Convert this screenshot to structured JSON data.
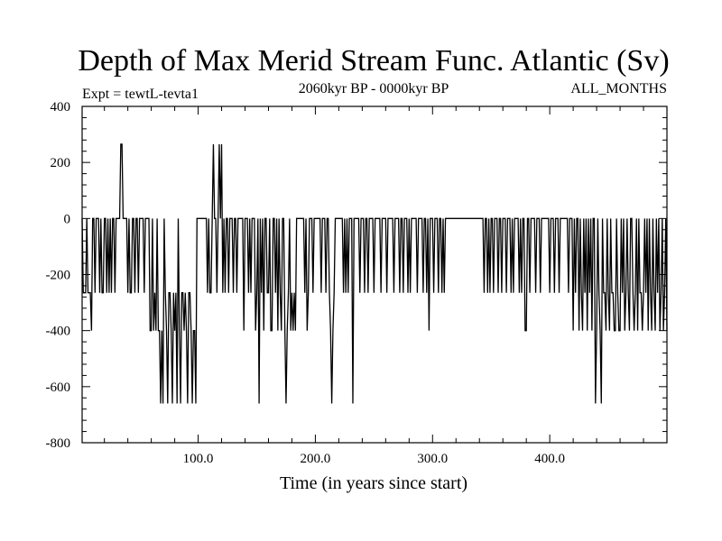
{
  "chart_data": {
    "type": "line",
    "title": "Depth of Max Merid Stream Func. Atlantic (Sv)",
    "subtitle_left": "Expt = tewtL-tevta1",
    "subtitle_center": "2060kyr BP - 0000kyr BP",
    "subtitle_right": "ALL_MONTHS",
    "xlabel": "Time (in years since start)",
    "ylabel": "",
    "xlim": [
      1,
      500
    ],
    "ylim": [
      -800,
      400
    ],
    "x_ticks": [
      100,
      200,
      300,
      400
    ],
    "x_tick_labels": [
      "100.0",
      "200.0",
      "300.0",
      "400.0"
    ],
    "y_ticks": [
      400,
      200,
      0,
      -200,
      -400,
      -600,
      -800
    ],
    "y_tick_labels": [
      "400",
      "200",
      "0",
      "-200",
      "-400",
      "-600",
      "-800"
    ],
    "grid": false,
    "series": [
      {
        "name": "Depth of Max Merid Stream Func.",
        "x_start": 1,
        "x_step": 1,
        "values": [
          0,
          -265,
          -265,
          -265,
          0,
          -265,
          -265,
          -265,
          -400,
          0,
          0,
          -265,
          0,
          0,
          0,
          -265,
          0,
          -265,
          -265,
          0,
          0,
          -265,
          0,
          -265,
          0,
          -265,
          0,
          0,
          -265,
          0,
          0,
          0,
          0,
          265,
          265,
          0,
          0,
          0,
          0,
          -265,
          0,
          -265,
          -265,
          0,
          0,
          -265,
          0,
          0,
          -265,
          0,
          0,
          0,
          0,
          -265,
          0,
          0,
          0,
          0,
          -400,
          -400,
          0,
          -400,
          -265,
          -400,
          0,
          -400,
          -400,
          -660,
          -400,
          -660,
          0,
          -265,
          -400,
          -660,
          -265,
          -265,
          -400,
          -660,
          -265,
          -400,
          -265,
          -660,
          0,
          -400,
          -660,
          -265,
          -265,
          -400,
          -265,
          -400,
          -660,
          -265,
          -265,
          -400,
          -660,
          -400,
          -400,
          -660,
          0,
          0,
          0,
          0,
          0,
          0,
          0,
          0,
          0,
          -265,
          0,
          -265,
          -265,
          0,
          265,
          0,
          0,
          -265,
          0,
          265,
          0,
          265,
          -265,
          0,
          -265,
          0,
          0,
          -265,
          0,
          0,
          0,
          -265,
          0,
          0,
          -265,
          0,
          0,
          0,
          0,
          0,
          -400,
          0,
          0,
          0,
          -265,
          0,
          -265,
          0,
          0,
          0,
          -400,
          -265,
          0,
          -660,
          0,
          -265,
          0,
          -400,
          0,
          0,
          -265,
          -265,
          0,
          -400,
          -400,
          0,
          0,
          -265,
          0,
          -400,
          0,
          -265,
          -400,
          0,
          0,
          -400,
          -660,
          -400,
          -265,
          0,
          -400,
          -265,
          -400,
          -265,
          -400,
          0,
          0,
          0,
          0,
          0,
          0,
          0,
          -265,
          0,
          -400,
          -265,
          0,
          0,
          0,
          -265,
          0,
          0,
          0,
          0,
          0,
          0,
          -265,
          0,
          0,
          0,
          -265,
          0,
          0,
          -265,
          -400,
          -660,
          -400,
          -265,
          0,
          0,
          0,
          0,
          0,
          0,
          0,
          -265,
          0,
          -265,
          0,
          -265,
          0,
          0,
          0,
          -660,
          0,
          0,
          0,
          0,
          0,
          -265,
          0,
          0,
          0,
          -265,
          0,
          0,
          -265,
          0,
          0,
          0,
          0,
          -265,
          0,
          0,
          0,
          0,
          0,
          -265,
          0,
          0,
          0,
          0,
          -265,
          0,
          0,
          0,
          0,
          0,
          -265,
          0,
          0,
          0,
          0,
          -265,
          0,
          0,
          -265,
          0,
          0,
          0,
          -265,
          0,
          -265,
          0,
          0,
          0,
          0,
          0,
          -265,
          0,
          0,
          0,
          0,
          -265,
          0,
          0,
          -265,
          0,
          -400,
          0,
          0,
          0,
          -265,
          0,
          0,
          0,
          -265,
          0,
          0,
          -265,
          0,
          -265,
          0,
          0,
          0,
          0,
          0,
          0,
          0,
          0,
          0,
          0,
          0,
          0,
          0,
          0,
          0,
          0,
          0,
          0,
          0,
          0,
          0,
          0,
          0,
          0,
          0,
          0,
          0,
          0,
          0,
          0,
          0,
          0,
          0,
          -265,
          0,
          0,
          -265,
          0,
          -265,
          0,
          0,
          -265,
          0,
          0,
          0,
          -265,
          0,
          0,
          -265,
          0,
          0,
          0,
          -265,
          0,
          0,
          0,
          -265,
          0,
          -265,
          0,
          0,
          0,
          0,
          -265,
          0,
          -265,
          0,
          0,
          -400,
          -400,
          0,
          0,
          -265,
          0,
          0,
          0,
          0,
          -265,
          0,
          0,
          0,
          -265,
          0,
          0,
          0,
          0,
          0,
          0,
          0,
          -265,
          0,
          0,
          0,
          -265,
          0,
          0,
          0,
          -265,
          0,
          0,
          0,
          0,
          0,
          0,
          0,
          -265,
          0,
          0,
          0,
          -400,
          0,
          -265,
          0,
          0,
          -400,
          0,
          -265,
          -400,
          0,
          -265,
          0,
          -400,
          0,
          -265,
          0,
          -400,
          0,
          0,
          -660,
          -400,
          0,
          -265,
          -400,
          -660,
          0,
          -265,
          -265,
          -400,
          0,
          -265,
          -400,
          0,
          -265,
          -265,
          -400,
          -400,
          0,
          -265,
          -400,
          -400,
          0,
          -265,
          0,
          -400,
          -265,
          0,
          -265,
          -400,
          0,
          0,
          -265,
          -400,
          -265,
          0,
          -400,
          0,
          -265,
          -265,
          -400,
          -265,
          0,
          -265,
          0,
          -400,
          0,
          -265,
          -400,
          0,
          -265,
          -400,
          0,
          -265,
          0,
          -400,
          -265,
          0,
          -400,
          -265,
          0,
          -400
        ]
      }
    ]
  }
}
